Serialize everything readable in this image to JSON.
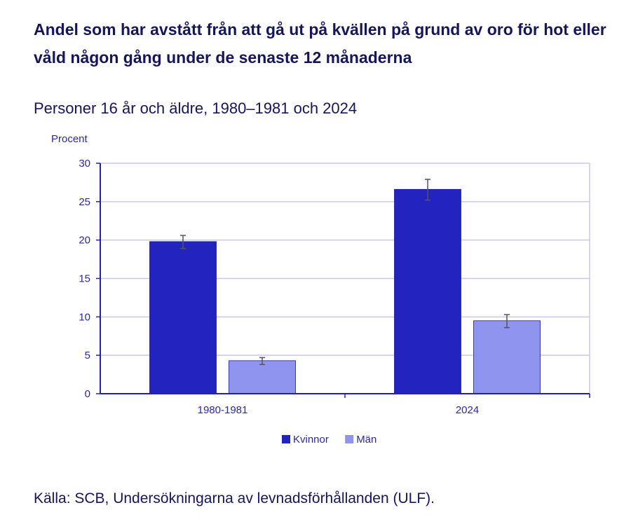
{
  "title": "Andel som har avstått från att gå ut på kvällen på grund av oro för hot eller våld någon gång under de senaste 12 månaderna",
  "subtitle": "Personer 16 år och äldre, 1980–1981 och 2024",
  "source": "Källa: SCB, Undersökningarna av levnadsförhållanden (ULF).",
  "chart_data": {
    "type": "bar",
    "ylabel": "Procent",
    "ylim": [
      0,
      30
    ],
    "yticks": [
      0,
      5,
      10,
      15,
      20,
      25,
      30
    ],
    "categories": [
      "1980-1981",
      "2024"
    ],
    "grid": true,
    "legend_position": "bottom",
    "series": [
      {
        "name": "Kvinnor",
        "color": "#2323c0",
        "values": [
          19.8,
          26.6
        ],
        "error_low": [
          18.9,
          25.2
        ],
        "error_high": [
          20.6,
          27.9
        ]
      },
      {
        "name": "Män",
        "color": "#8f94ee",
        "values": [
          4.3,
          9.5
        ],
        "error_low": [
          3.8,
          8.6
        ],
        "error_high": [
          4.7,
          10.3
        ]
      }
    ]
  }
}
